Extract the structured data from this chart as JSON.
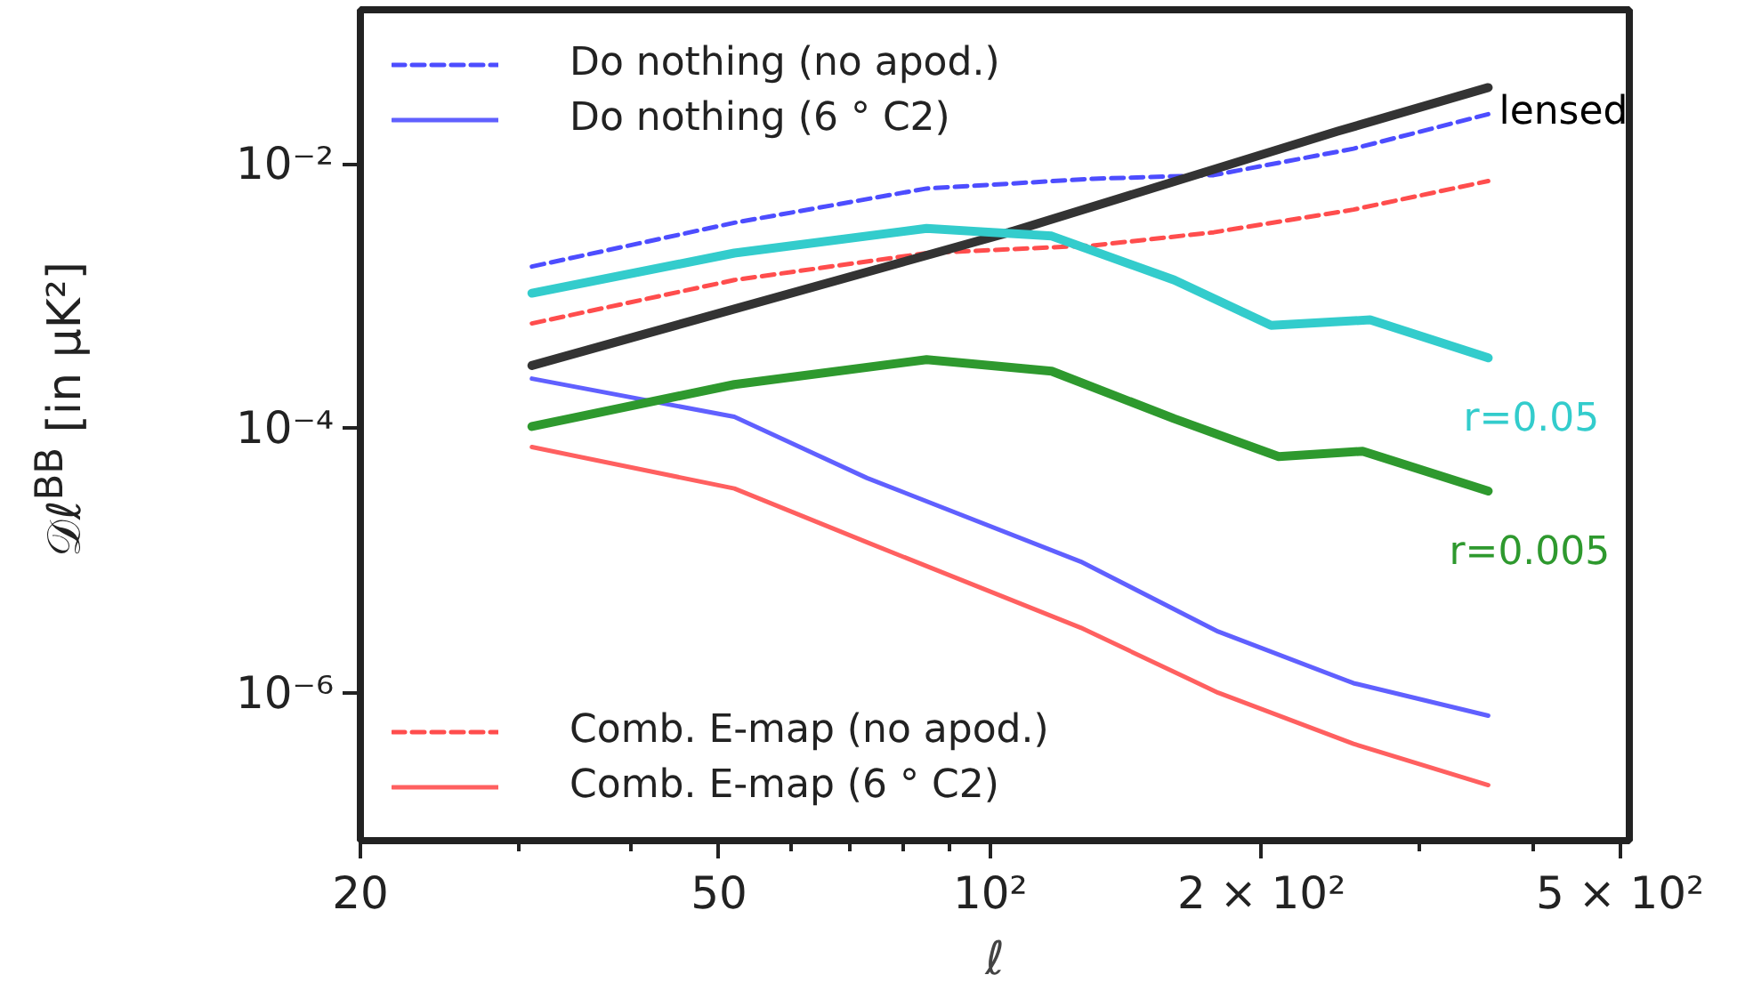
{
  "chart_data": {
    "type": "line",
    "xlabel": "ℓ",
    "ylabel": "𝒟ℓ$^{BB}$ [in μK²]",
    "log": "xy",
    "grid": false,
    "legend": "left",
    "xlim": [
      20,
      512
    ],
    "ylim": [
      7.6e-08,
      0.146
    ],
    "xticks": [
      20,
      {
        "value": 30,
        "label": null
      },
      {
        "value": 40,
        "label": null
      },
      50,
      {
        "value": 60,
        "label": null
      },
      {
        "value": 70,
        "label": null
      },
      {
        "value": 80,
        "label": null
      },
      {
        "value": 90,
        "label": null
      },
      {
        "value": 100,
        "label": "10²"
      },
      {
        "value": 200,
        "label": "2 × 10²"
      },
      {
        "value": 300,
        "label": null
      },
      {
        "value": 400,
        "label": null
      },
      {
        "value": 500,
        "label": "5 × 10²"
      }
    ],
    "yticks": [
      {
        "value": 1e-06,
        "label": "10⁻⁶"
      },
      {
        "value": 0.0001,
        "label": "10⁻⁴"
      },
      {
        "value": 0.01,
        "label": "10⁻²"
      }
    ],
    "series": [
      {
        "name": "Do nothing (no apod.)",
        "color": "#4d4dff",
        "line_style": "dashed",
        "x": [
          31,
          52,
          85,
          130,
          177,
          253,
          357
        ],
        "values": [
          0.00167,
          0.00358,
          0.0065,
          0.0077,
          0.0082,
          0.013,
          0.0237
        ]
      },
      {
        "name": "Do nothing (6 ° C2)",
        "color": "#6060ff",
        "line_style": "solid",
        "x": [
          31,
          52,
          73,
          126,
          179,
          253,
          357
        ],
        "values": [
          0.000237,
          0.000122,
          4.2e-05,
          9.8e-06,
          2.9e-06,
          1.18e-06,
          6.7e-07
        ]
      },
      {
        "name": "Comb. E-map (no apod.)",
        "color": "#ff4d4d",
        "line_style": "dashed",
        "x": [
          31,
          52,
          85,
          130,
          177,
          253,
          357
        ],
        "values": [
          0.00062,
          0.00132,
          0.00211,
          0.00241,
          0.00303,
          0.0045,
          0.0074
        ]
      },
      {
        "name": "Comb. E-map (6 ° C2)",
        "color": "#ff6060",
        "line_style": "solid",
        "x": [
          31,
          52,
          73,
          126,
          179,
          253,
          357
        ],
        "values": [
          7.2e-05,
          3.5e-05,
          1.37e-05,
          3.1e-06,
          1e-06,
          4.1e-07,
          2e-07
        ]
      },
      {
        "color": "#333333",
        "line_style": "solid",
        "x": [
          31,
          105,
          243,
          357
        ],
        "values": [
          0.000298,
          0.00303,
          0.0176,
          0.0377
        ]
      },
      {
        "color": "#33cccc",
        "line_style": "solid",
        "x": [
          31,
          52,
          85,
          117,
          160,
          205,
          264,
          357
        ],
        "values": [
          0.00105,
          0.00211,
          0.00324,
          0.00284,
          0.00132,
          0.0006,
          0.00066,
          0.00034
        ]
      },
      {
        "color": "#2e992e",
        "line_style": "solid",
        "x": [
          31,
          52,
          85,
          117,
          160,
          209,
          259,
          357
        ],
        "values": [
          0.000103,
          0.000214,
          0.00033,
          0.00027,
          0.000118,
          6.1e-05,
          6.7e-05,
          3.35e-05
        ]
      }
    ],
    "annotations": [
      "lensed",
      "r=0.05",
      "r=0.005"
    ]
  }
}
